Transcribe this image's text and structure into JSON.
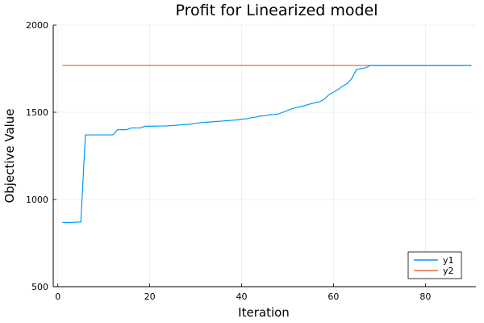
{
  "chart_data": {
    "type": "line",
    "title": "Profit for Linearized model",
    "xlabel": "Iteration",
    "ylabel": "Objective Value",
    "xlim": [
      -1,
      91
    ],
    "ylim": [
      500,
      2000
    ],
    "xticks": [
      0,
      20,
      40,
      60,
      80
    ],
    "yticks": [
      500,
      1000,
      1500,
      2000
    ],
    "grid": true,
    "legend_position": "bottom-right",
    "series": [
      {
        "name": "y1",
        "color": "#009AFA",
        "x": [
          1,
          2,
          3,
          4,
          5,
          6,
          7,
          8,
          9,
          10,
          11,
          12,
          13,
          14,
          15,
          16,
          17,
          18,
          19,
          20,
          21,
          22,
          23,
          24,
          25,
          26,
          27,
          28,
          29,
          30,
          31,
          32,
          33,
          34,
          35,
          36,
          37,
          38,
          39,
          40,
          41,
          42,
          43,
          44,
          45,
          46,
          47,
          48,
          49,
          50,
          51,
          52,
          53,
          54,
          55,
          56,
          57,
          58,
          59,
          60,
          61,
          62,
          63,
          64,
          65,
          66,
          67,
          68,
          69,
          70,
          71,
          72,
          73,
          74,
          75,
          76,
          77,
          78,
          79,
          80,
          81,
          82,
          83,
          84,
          85,
          86,
          87,
          88,
          89,
          90
        ],
        "y": [
          868,
          868,
          868,
          870,
          870,
          1370,
          1370,
          1370,
          1370,
          1370,
          1370,
          1370,
          1400,
          1400,
          1400,
          1410,
          1410,
          1410,
          1420,
          1420,
          1420,
          1421,
          1421,
          1422,
          1424,
          1426,
          1428,
          1430,
          1432,
          1436,
          1440,
          1442,
          1444,
          1446,
          1448,
          1450,
          1452,
          1454,
          1456,
          1460,
          1462,
          1468,
          1472,
          1478,
          1480,
          1485,
          1487,
          1490,
          1500,
          1510,
          1520,
          1528,
          1533,
          1540,
          1548,
          1555,
          1560,
          1575,
          1600,
          1615,
          1630,
          1650,
          1665,
          1695,
          1745,
          1750,
          1755,
          1768,
          1768,
          1768,
          1768,
          1768,
          1768,
          1768,
          1768,
          1768,
          1768,
          1768,
          1768,
          1768,
          1768,
          1768,
          1768,
          1768,
          1768,
          1768,
          1768,
          1768,
          1768,
          1768
        ]
      },
      {
        "name": "y2",
        "color": "#E36F47",
        "x": [
          1,
          90
        ],
        "y": [
          1768,
          1768
        ]
      }
    ]
  }
}
